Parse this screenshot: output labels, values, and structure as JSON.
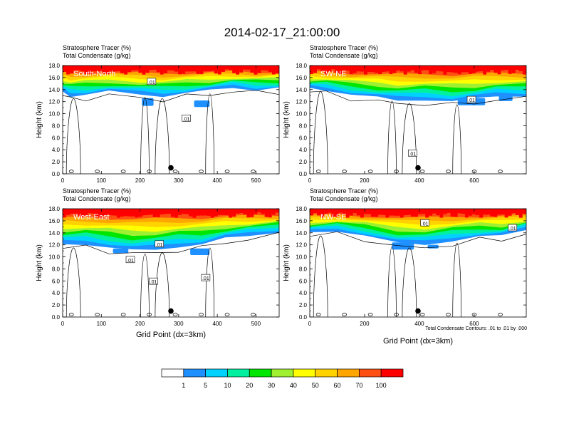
{
  "title": "2014-02-17_21:00:00",
  "colors": {
    "levels": [
      "#ffffff",
      "#1e90ff",
      "#00d2ff",
      "#00f0a0",
      "#00e600",
      "#a0f032",
      "#ffff00",
      "#ffd200",
      "#ffa500",
      "#ff5014",
      "#ff0000"
    ],
    "contour": "#000000",
    "marker": "#000000"
  },
  "colorbar": {
    "labels": [
      "1",
      "5",
      "10",
      "20",
      "30",
      "40",
      "50",
      "60",
      "70",
      "100"
    ]
  },
  "footnote": "Total Condensate Contours: .01 to .01 by .000",
  "chart_data": [
    {
      "type": "heatmap",
      "title": "South-North",
      "top_labels": [
        "Stratosphere Tracer   (%)",
        "Total Condensate   (g/kg)"
      ],
      "ylabel": "Height (km)",
      "xlabel": "",
      "ylim": [
        0,
        18
      ],
      "xlim": [
        0,
        560
      ],
      "yticks": [
        "0.0",
        "2.0",
        "4.0",
        "6.0",
        "8.0",
        "10.0",
        "12.0",
        "14.0",
        "16.0",
        "18.0"
      ],
      "xticks": [
        {
          "v": 0,
          "label": "0"
        },
        {
          "v": 100,
          "label": "100"
        },
        {
          "v": 200,
          "label": "200"
        },
        {
          "v": 300,
          "label": "300"
        },
        {
          "v": 400,
          "label": "400"
        },
        {
          "v": 500,
          "label": "500"
        }
      ],
      "contour_labels": [
        {
          "x": 230,
          "y": 15.3,
          "text": ".01"
        },
        {
          "x": 320,
          "y": 9.2,
          "text": ".01"
        }
      ],
      "marker": {
        "x": 280,
        "y": 1.0
      },
      "upper_clip": [
        [
          0,
          13.6
        ],
        [
          20,
          13.0
        ],
        [
          60,
          13.2
        ],
        [
          120,
          13.6
        ],
        [
          200,
          13.2
        ],
        [
          260,
          13.0
        ],
        [
          320,
          13.4
        ],
        [
          380,
          13.8
        ],
        [
          440,
          14.4
        ],
        [
          500,
          14.0
        ],
        [
          560,
          14.2
        ]
      ],
      "blue_patches": [
        [
          205,
          12.6,
          235,
          11.3
        ],
        [
          340,
          12.2,
          380,
          11.1
        ]
      ]
    },
    {
      "type": "heatmap",
      "title": "SW-NE",
      "top_labels": [
        "Stratosphere Tracer   (%)",
        "Total Condensate   (g/kg)"
      ],
      "ylabel": "Height (km)",
      "xlabel": "",
      "ylim": [
        0,
        18
      ],
      "xlim": [
        0,
        790
      ],
      "yticks": [
        "0.0",
        "2.0",
        "4.0",
        "6.0",
        "8.0",
        "10.0",
        "12.0",
        "14.0",
        "16.0",
        "18.0"
      ],
      "xticks": [
        {
          "v": 0,
          "label": "0"
        },
        {
          "v": 200,
          "label": "200"
        },
        {
          "v": 400,
          "label": "400"
        },
        {
          "v": 600,
          "label": "600"
        }
      ],
      "contour_labels": [
        {
          "x": 590,
          "y": 12.3,
          "text": ".01"
        },
        {
          "x": 375,
          "y": 3.4,
          "text": ".01"
        }
      ],
      "marker": {
        "x": 395,
        "y": 1.0
      },
      "upper_clip": [
        [
          0,
          14.2
        ],
        [
          60,
          14.0
        ],
        [
          150,
          13.2
        ],
        [
          250,
          12.6
        ],
        [
          320,
          12.2
        ],
        [
          420,
          12.4
        ],
        [
          520,
          12.0
        ],
        [
          600,
          12.4
        ],
        [
          680,
          13.0
        ],
        [
          790,
          13.0
        ]
      ],
      "blue_patches": [
        [
          540,
          12.6,
          640,
          11.4
        ],
        [
          690,
          13.0,
          740,
          12.1
        ]
      ]
    },
    {
      "type": "heatmap",
      "title": "West-East",
      "top_labels": [
        "Stratosphere Tracer   (%)",
        "Total Condensate   (g/kg)"
      ],
      "ylabel": "Height (km)",
      "xlabel": "Grid Point (dx=3km)",
      "ylim": [
        0,
        18
      ],
      "xlim": [
        0,
        560
      ],
      "yticks": [
        "0.0",
        "2.0",
        "4.0",
        "6.0",
        "8.0",
        "10.0",
        "12.0",
        "14.0",
        "16.0",
        "18.0"
      ],
      "xticks": [
        {
          "v": 0,
          "label": "0"
        },
        {
          "v": 100,
          "label": "100"
        },
        {
          "v": 200,
          "label": "200"
        },
        {
          "v": 300,
          "label": "300"
        },
        {
          "v": 400,
          "label": "400"
        },
        {
          "v": 500,
          "label": "500"
        }
      ],
      "contour_labels": [
        {
          "x": 250,
          "y": 12.1,
          "text": ".01"
        },
        {
          "x": 175,
          "y": 9.5,
          "text": ".01"
        },
        {
          "x": 235,
          "y": 5.9,
          "text": ".01"
        },
        {
          "x": 370,
          "y": 6.5,
          "text": ".01"
        }
      ],
      "marker": {
        "x": 280,
        "y": 1.0
      },
      "upper_clip": [
        [
          0,
          12.0
        ],
        [
          60,
          12.2
        ],
        [
          120,
          11.6
        ],
        [
          180,
          11.0
        ],
        [
          240,
          11.2
        ],
        [
          300,
          11.8
        ],
        [
          360,
          12.0
        ],
        [
          420,
          13.0
        ],
        [
          480,
          13.6
        ],
        [
          560,
          14.2
        ]
      ],
      "blue_patches": [
        [
          130,
          11.4,
          170,
          10.6
        ],
        [
          330,
          11.4,
          380,
          10.3
        ]
      ]
    },
    {
      "type": "heatmap",
      "title": "NW-SE",
      "top_labels": [
        "Stratosphere Tracer   (%)",
        "Total Condensate   (g/kg)"
      ],
      "ylabel": "Height (km)",
      "xlabel": "Grid Point (dx=3km)",
      "ylim": [
        0,
        18
      ],
      "xlim": [
        0,
        790
      ],
      "yticks": [
        "0.0",
        "2.0",
        "4.0",
        "6.0",
        "8.0",
        "10.0",
        "12.0",
        "14.0",
        "16.0",
        "18.0"
      ],
      "xticks": [
        {
          "v": 0,
          "label": "0"
        },
        {
          "v": 200,
          "label": "200"
        },
        {
          "v": 400,
          "label": "400"
        },
        {
          "v": 600,
          "label": "600"
        }
      ],
      "contour_labels": [
        {
          "x": 420,
          "y": 15.6,
          "text": ".01"
        },
        {
          "x": 740,
          "y": 14.8,
          "text": ".01"
        }
      ],
      "marker": {
        "x": 395,
        "y": 1.0
      },
      "upper_clip": [
        [
          0,
          14.0
        ],
        [
          100,
          14.4
        ],
        [
          200,
          13.6
        ],
        [
          320,
          12.2
        ],
        [
          420,
          12.0
        ],
        [
          520,
          12.8
        ],
        [
          620,
          13.4
        ],
        [
          700,
          13.4
        ],
        [
          790,
          14.6
        ]
      ],
      "blue_patches": [
        [
          300,
          12.4,
          380,
          11.2
        ],
        [
          430,
          12.0,
          470,
          11.4
        ]
      ]
    }
  ]
}
